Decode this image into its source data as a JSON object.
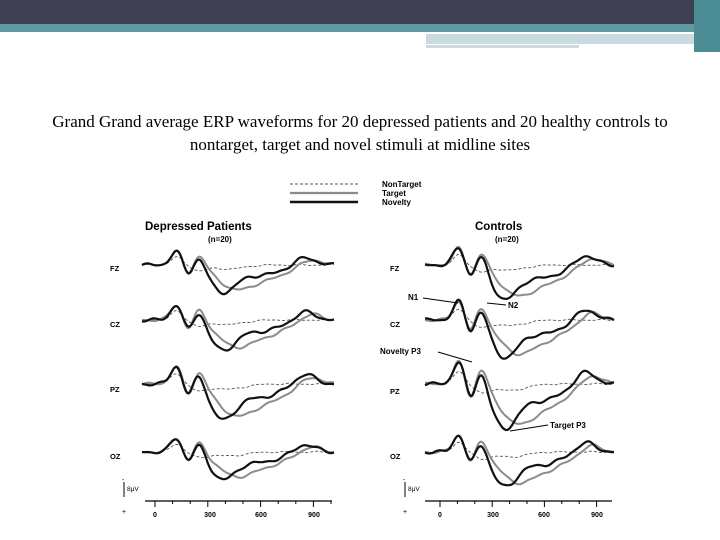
{
  "slide": {
    "caption": "Grand Grand average ERP waveforms for 20 depressed patients and 20 healthy controls to nontarget, target and novel stimuli at midline sites"
  },
  "legend": {
    "nontarget": "NonTarget",
    "target": "Target",
    "novelty": "Novelty"
  },
  "panels": {
    "left": {
      "title": "Depressed Patients",
      "n": "(n=20)"
    },
    "right": {
      "title": "Controls",
      "n": "(n=20)"
    }
  },
  "sites": [
    "FZ",
    "CZ",
    "PZ",
    "OZ"
  ],
  "annotations": {
    "n1": "N1",
    "n2": "N2",
    "novelty_p3": "Novelty P3",
    "target_p3": "Target P3"
  },
  "scale": {
    "amplitude": "8μV",
    "plus": "+",
    "minus": "-",
    "ticks": [
      "0",
      "300",
      "600",
      "900"
    ]
  },
  "colors": {
    "nontarget": "#555555",
    "target": "#8c8c8c",
    "novelty": "#111111"
  }
}
